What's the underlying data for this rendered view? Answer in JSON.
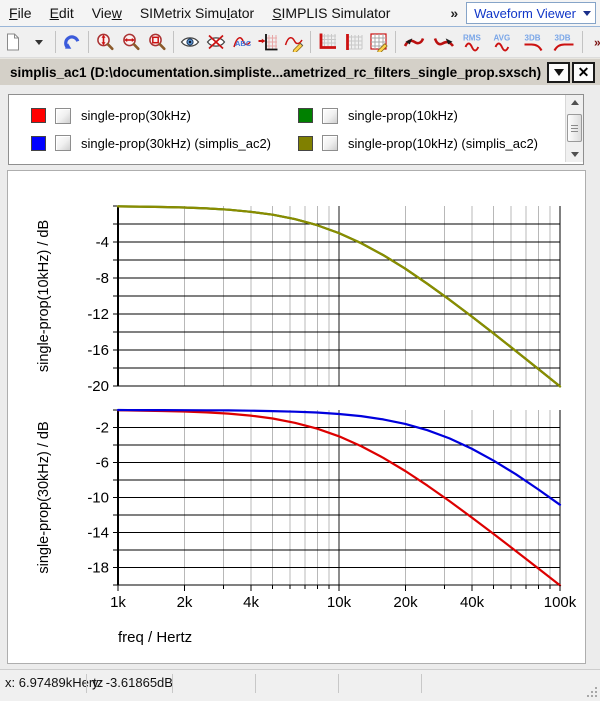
{
  "menubar": {
    "items": [
      {
        "label": "File",
        "accel_index": 0
      },
      {
        "label": "Edit",
        "accel_index": 0
      },
      {
        "label": "View",
        "accel_index": 3
      },
      {
        "label": "SIMetrix Simulator",
        "accel_index": 13
      },
      {
        "label": "SIMPLIS Simulator",
        "accel_index": 0
      }
    ],
    "overflow_glyph": "»",
    "mode_select": {
      "value": "Waveform Viewer"
    }
  },
  "toolbar": {
    "groups": [
      [
        "new-file",
        "new-file-dropdown"
      ],
      [
        "undo"
      ],
      [
        "zoom-y",
        "zoom-x",
        "zoom-box"
      ],
      [
        "show-curve",
        "hide-curve",
        "curve-label",
        "add-curve",
        "edit-curve"
      ],
      [
        "add-grid-axis",
        "add-grid-line",
        "edit-grid"
      ],
      [
        "curve-back",
        "curve-forward",
        "rms",
        "avg",
        "3db-lowpass",
        "3db-highpass"
      ],
      [
        "overflow"
      ]
    ]
  },
  "doc_window": {
    "title": "simplis_ac1 (D:\\documentation.simpliste...ametrized_rc_filters_single_prop.sxsch)"
  },
  "legend": {
    "items": [
      {
        "label": "single-prop(30kHz)",
        "color": "#ff0000",
        "checked": false
      },
      {
        "label": "single-prop(10kHz)",
        "color": "#008000",
        "checked": false
      },
      {
        "label": "single-prop(30kHz) (simplis_ac2)",
        "color": "#0000ff",
        "checked": false
      },
      {
        "label": "single-prop(10kHz) (simplis_ac2)",
        "color": "#808000",
        "checked": false
      }
    ]
  },
  "chart_data": {
    "type": "line",
    "x_axis": {
      "label": "freq / Hertz",
      "scale": "log",
      "min": 1000,
      "max": 100000,
      "tick_values": [
        1000,
        2000,
        4000,
        10000,
        20000,
        40000,
        100000
      ],
      "tick_labels": [
        "1k",
        "2k",
        "4k",
        "10k",
        "20k",
        "40k",
        "100k"
      ]
    },
    "x": [
      1000,
      1259,
      1585,
      1995,
      2512,
      3162,
      3981,
      5012,
      6310,
      7943,
      10000,
      12589,
      15849,
      19953,
      25119,
      31623,
      39811,
      50119,
      63096,
      79433,
      100000
    ],
    "subplots": [
      {
        "ylabel": "single-prop(10kHz) / dB",
        "ylim": [
          -20,
          0
        ],
        "ytick_step": 2,
        "ytick_labels": [
          -4,
          -8,
          -12,
          -16,
          -20
        ],
        "series": [
          {
            "name": "single-prop(10kHz)",
            "color": "#008000",
            "y": [
              -0.04,
              -0.07,
              -0.11,
              -0.17,
              -0.27,
              -0.41,
              -0.64,
              -0.97,
              -1.46,
              -2.12,
              -3.01,
              -4.12,
              -5.46,
              -6.97,
              -8.64,
              -10.41,
              -12.27,
              -14.17,
              -16.11,
              -18.07,
              -20.04
            ]
          },
          {
            "name": "single-prop(10kHz) (simplis_ac2)",
            "color": "#8b8b00",
            "y": [
              -0.04,
              -0.07,
              -0.11,
              -0.17,
              -0.27,
              -0.41,
              -0.64,
              -0.97,
              -1.46,
              -2.12,
              -3.01,
              -4.12,
              -5.46,
              -6.97,
              -8.64,
              -10.41,
              -12.27,
              -14.17,
              -16.11,
              -18.07,
              -20.04
            ]
          }
        ]
      },
      {
        "ylabel": "single-prop(30kHz) / dB",
        "ylim": [
          -20,
          0
        ],
        "ytick_step": 2,
        "ytick_labels": [
          -2,
          -6,
          -10,
          -14,
          -18
        ],
        "series": [
          {
            "name": "single-prop(30kHz)",
            "color": "#dd0000",
            "y": [
              -0.04,
              -0.07,
              -0.11,
              -0.17,
              -0.27,
              -0.41,
              -0.64,
              -0.97,
              -1.46,
              -2.12,
              -3.01,
              -4.12,
              -5.46,
              -6.97,
              -8.64,
              -10.41,
              -12.27,
              -14.17,
              -16.11,
              -18.07,
              -20.04
            ]
          },
          {
            "name": "single-prop(30kHz) (simplis_ac2)",
            "color": "#0000dd",
            "y": [
              -0.005,
              -0.008,
              -0.012,
              -0.019,
              -0.03,
              -0.048,
              -0.076,
              -0.12,
              -0.19,
              -0.29,
              -0.46,
              -0.7,
              -1.07,
              -1.59,
              -2.31,
              -3.25,
              -4.41,
              -5.79,
              -7.34,
              -9.04,
              -10.83
            ]
          }
        ]
      }
    ],
    "grid": true,
    "legend_position": "top-panel"
  },
  "statusbar": {
    "x_readout": "x: 6.97489kHertz",
    "y_readout": "y: -3.61865dB"
  }
}
